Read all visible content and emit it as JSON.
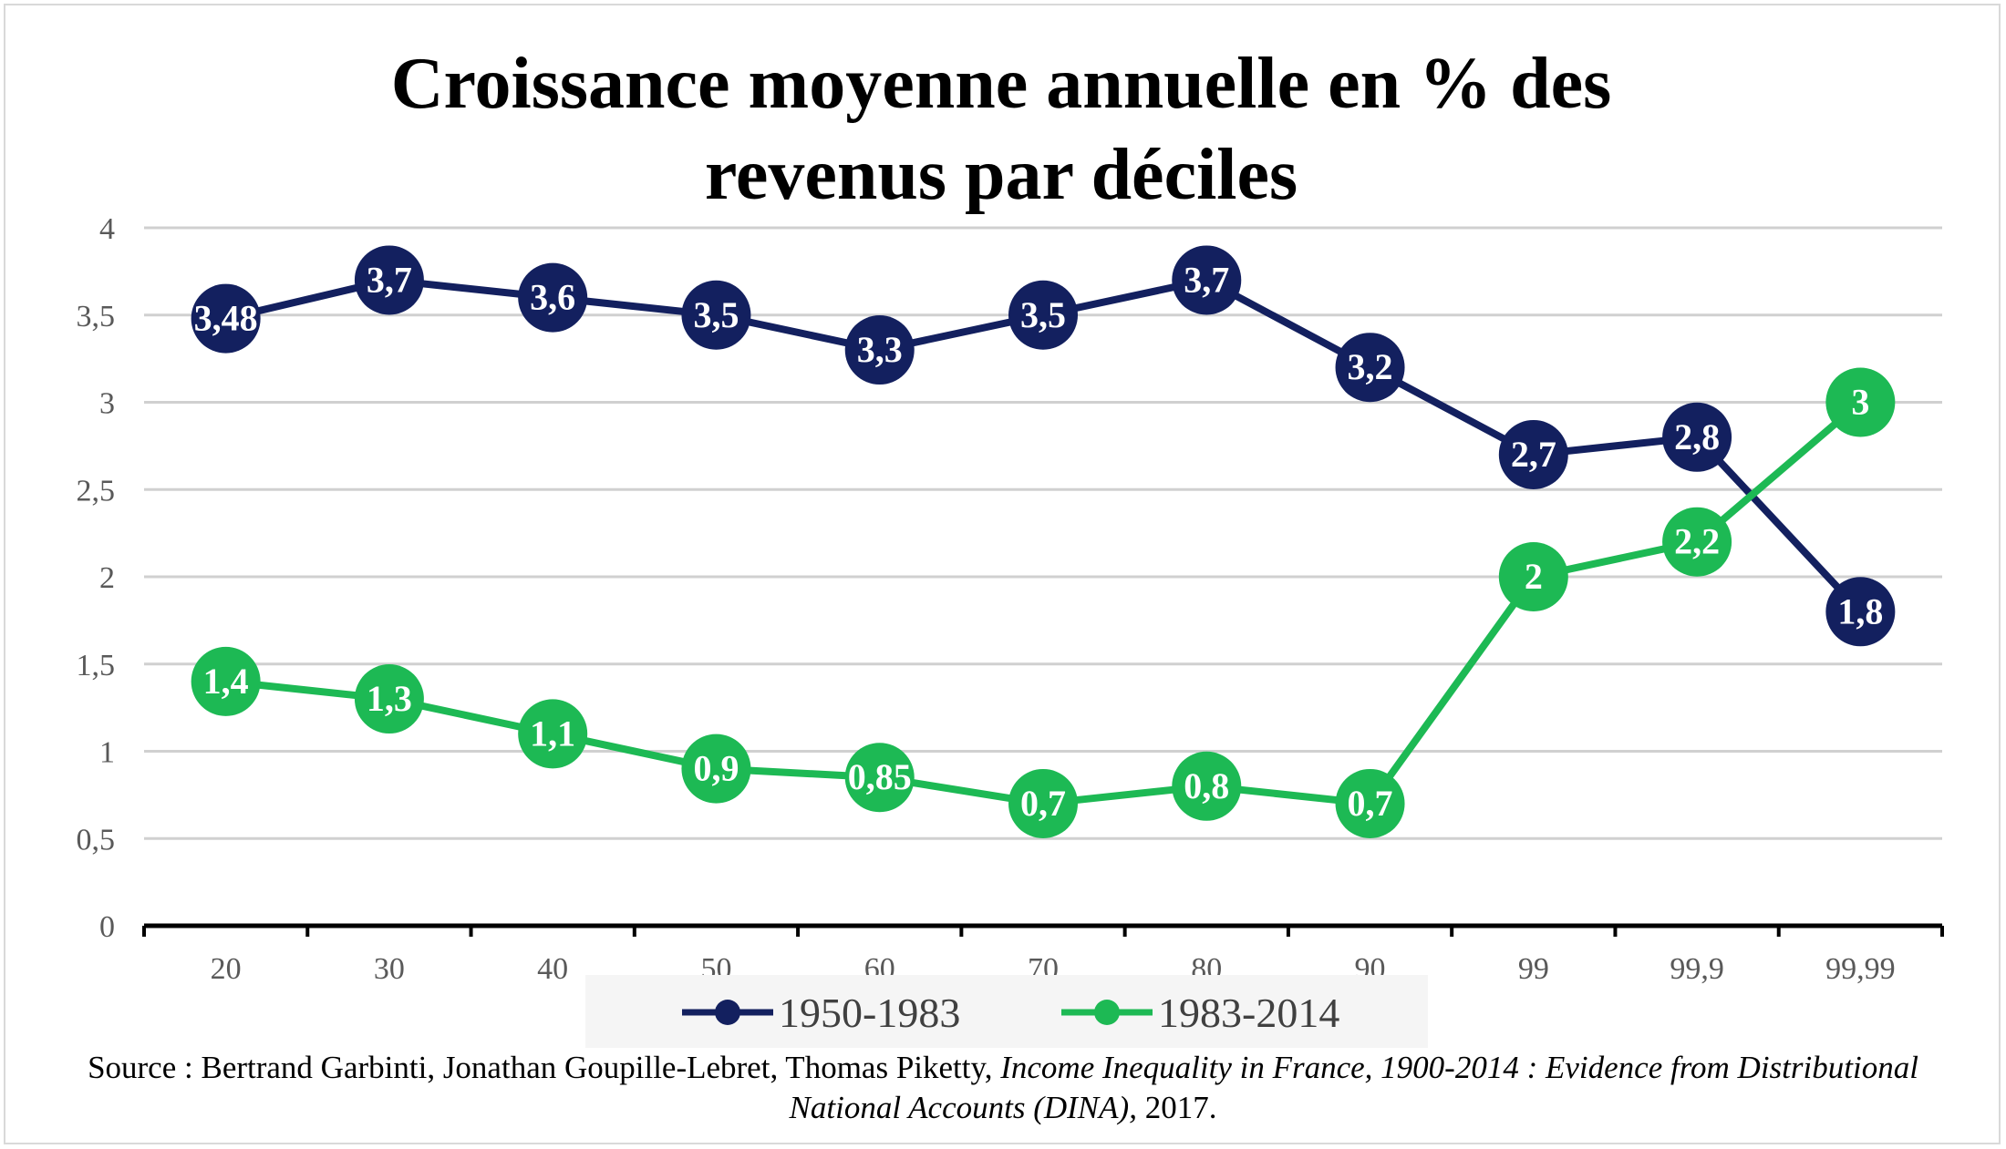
{
  "chart_data": {
    "type": "line",
    "title_lines": [
      "Croissance moyenne annuelle en % des",
      "revenus par déciles"
    ],
    "categories": [
      "20",
      "30",
      "40",
      "50",
      "60",
      "70",
      "80",
      "90",
      "99",
      "99,9",
      "99,99"
    ],
    "ylim": [
      0,
      4
    ],
    "y_ticks": [
      "0",
      "0,5",
      "1",
      "1,5",
      "2",
      "2,5",
      "3",
      "3,5",
      "4"
    ],
    "grid": true,
    "legend_position": "bottom",
    "series": [
      {
        "name": "1950-1983",
        "color": "#13205f",
        "values": [
          3.48,
          3.7,
          3.6,
          3.5,
          3.3,
          3.5,
          3.7,
          3.2,
          2.7,
          2.8,
          1.8
        ],
        "labels": [
          "3,48",
          "3,7",
          "3,6",
          "3,5",
          "3,3",
          "3,5",
          "3,7",
          "3,2",
          "2,7",
          "2,8",
          "1,8"
        ]
      },
      {
        "name": "1983-2014",
        "color": "#1db954",
        "values": [
          1.4,
          1.3,
          1.1,
          0.9,
          0.85,
          0.7,
          0.8,
          0.7,
          2,
          2.2,
          3
        ],
        "labels": [
          "1,4",
          "1,3",
          "1,1",
          "0,9",
          "0,85",
          "0,7",
          "0,8",
          "0,7",
          "2",
          "2,2",
          "3"
        ]
      }
    ]
  },
  "source": {
    "prefix": "Source : Bertrand Garbinti, Jonathan Goupille-Lebret, Thomas Piketty, ",
    "italic": "Income Inequality in France, 1900-2014 : Evidence from Distributional National Accounts (DINA),",
    "suffix": " 2017."
  },
  "colors": {
    "grid": "#d0d0d0",
    "axis": "#000000",
    "legend_bg": "#f5f5f5"
  }
}
